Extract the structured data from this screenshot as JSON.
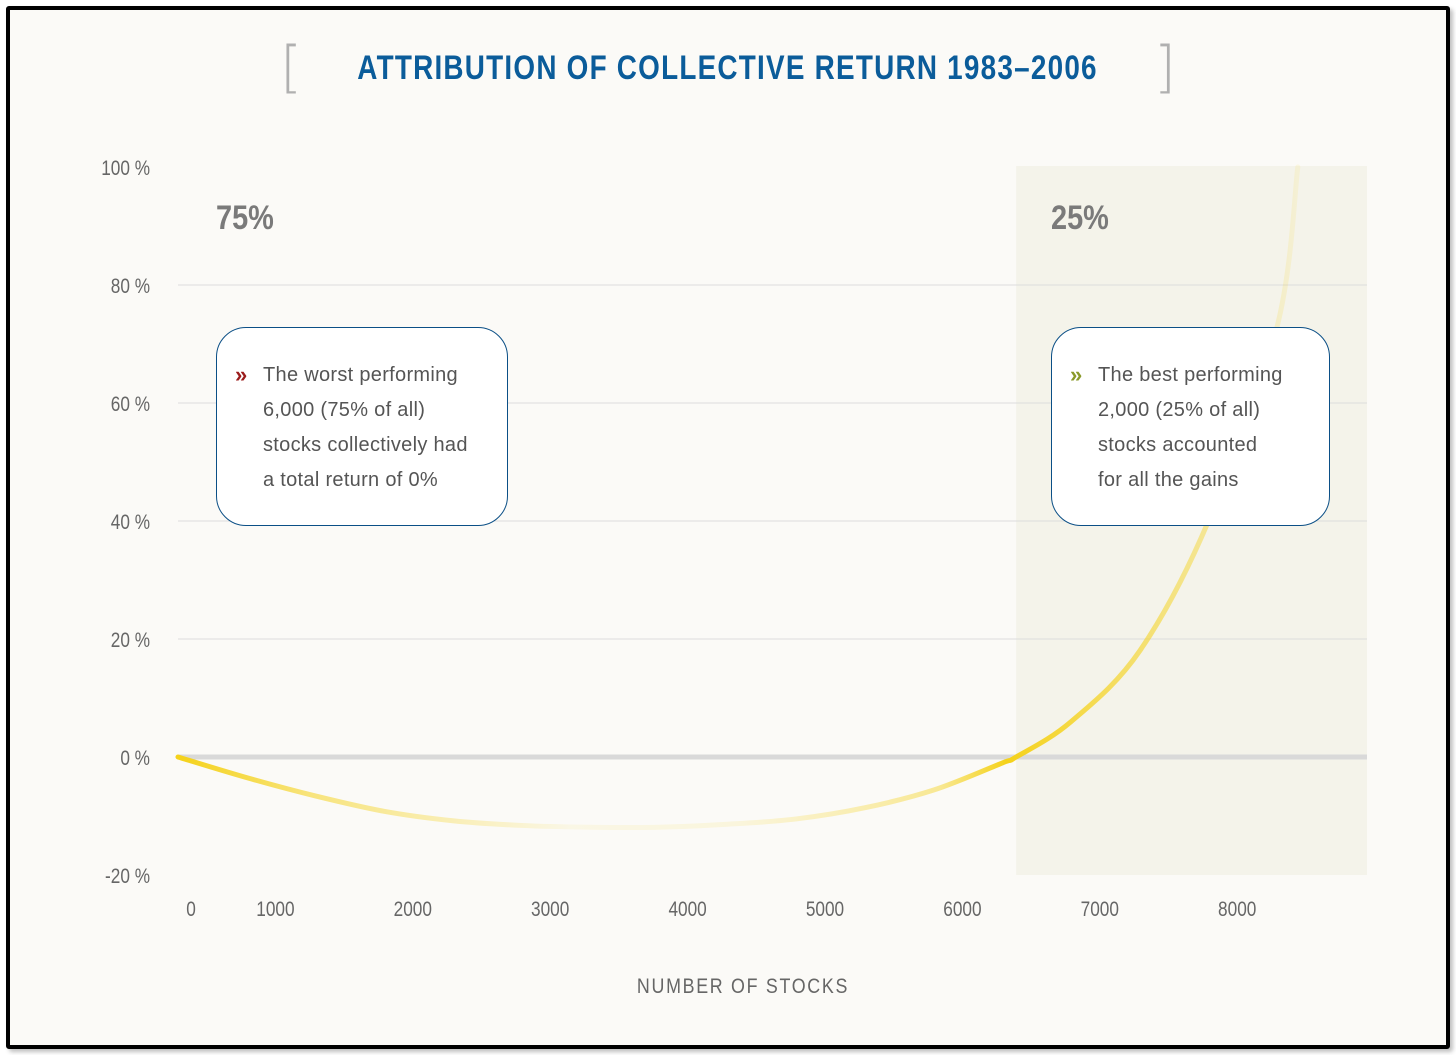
{
  "chart_data": {
    "type": "line",
    "title": "ATTRIBUTION OF COLLECTIVE RETURN 1983–2006",
    "xlabel": "NUMBER OF STOCKS",
    "ylabel": "",
    "xlim": [
      0,
      8700
    ],
    "ylim": [
      -20,
      100
    ],
    "x_ticks": [
      "0",
      "1000",
      "2000",
      "3000",
      "4000",
      "5000",
      "6000",
      "7000",
      "8000"
    ],
    "y_ticks": [
      "100 %",
      "80 %",
      "60 %",
      "40 %",
      "20 %",
      "0 %",
      "-20 %"
    ],
    "grid": true,
    "series": [
      {
        "x": [
          0,
          500,
          1000,
          1500,
          2000,
          2500,
          3000,
          3500,
          4000,
          4500,
          5000,
          5500,
          6000,
          6100,
          6500,
          7000,
          7500,
          8000,
          8150
        ],
        "y": [
          0,
          -3.5,
          -6.6,
          -9.2,
          -10.8,
          -11.6,
          -11.9,
          -11.9,
          -11.4,
          -10.5,
          -8.6,
          -5.6,
          -1.0,
          0,
          6.0,
          18.0,
          40.0,
          73.0,
          100.0
        ],
        "color": "#f5d21a"
      }
    ],
    "shaded_region": {
      "x": [
        6100,
        8700
      ],
      "color": "#f4f3ea"
    },
    "region_labels": [
      {
        "label": "75%",
        "x": 300
      },
      {
        "label": "25%",
        "x": 6400
      }
    ]
  },
  "callouts": {
    "worst": {
      "marker": "»",
      "marker_color": "#9b1c1c",
      "lines": [
        "The worst performing",
        "6,000 (75% of all)",
        "stocks collectively had",
        "a total return of 0%"
      ]
    },
    "best": {
      "marker": "»",
      "marker_color": "#8a9a2a",
      "lines": [
        "The best performing",
        "2,000 (25% of all)",
        "stocks accounted",
        "for all the gains"
      ]
    }
  }
}
